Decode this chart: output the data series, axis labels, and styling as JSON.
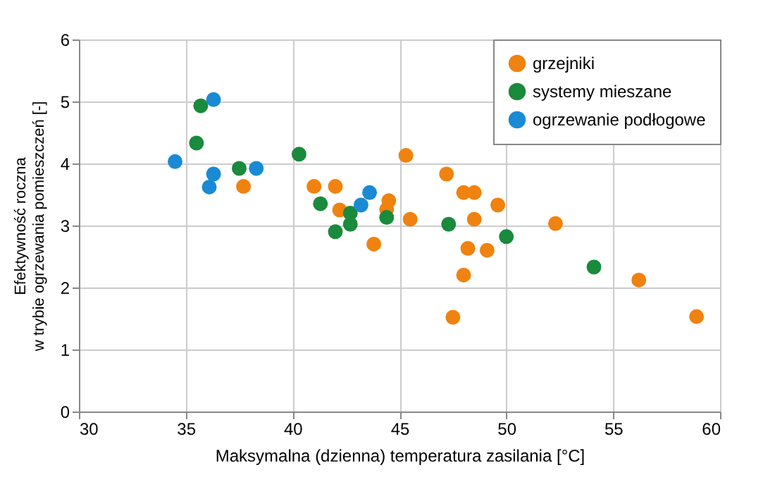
{
  "chart_data": {
    "type": "scatter",
    "xlabel": "Maksymalna (dzienna) temperatura zasilania [°C]",
    "ylabel": "Efektywność roczna\nw trybie ogrzewania pomieszczeń [-]",
    "xlim": [
      30,
      60
    ],
    "xticks": [
      30,
      35,
      40,
      45,
      50,
      55,
      60
    ],
    "ylim": [
      0,
      6
    ],
    "yticks": [
      0,
      1,
      2,
      3,
      4,
      5,
      6
    ],
    "grid": true,
    "legend": "top right",
    "marker": "circle",
    "series": [
      {
        "name": "grzejniki",
        "color": "#f0820f",
        "x": [
          37.7,
          41,
          42,
          42.2,
          43.8,
          44.5,
          44.4,
          45.3,
          45.5,
          47.2,
          48,
          48.5,
          47.5,
          48,
          48.2,
          48.5,
          49.1,
          49.6,
          52.3,
          56.2,
          58.9
        ],
        "values": [
          3.63,
          3.63,
          3.63,
          3.25,
          2.7,
          3.4,
          3.26,
          4.13,
          3.1,
          3.83,
          3.53,
          3.53,
          1.52,
          2.2,
          2.63,
          3.1,
          2.6,
          3.33,
          3.03,
          2.12,
          1.53
        ]
      },
      {
        "name": "systemy mieszane",
        "color": "#1a8a3c",
        "x": [
          35.7,
          35.5,
          37.5,
          40.3,
          41.3,
          42,
          42.7,
          42.7,
          44.4,
          47.3,
          50,
          54.1
        ],
        "values": [
          4.93,
          4.33,
          3.92,
          4.15,
          3.35,
          2.9,
          3.02,
          3.2,
          3.13,
          3.02,
          2.82,
          2.33
        ]
      },
      {
        "name": "ogrzewanie podłogowe",
        "color": "#1a8ad4",
        "x": [
          34.5,
          36.3,
          36.3,
          36.1,
          38.3,
          43.2,
          43.6
        ],
        "values": [
          4.03,
          5.03,
          3.83,
          3.62,
          3.92,
          3.33,
          3.53
        ]
      }
    ]
  }
}
